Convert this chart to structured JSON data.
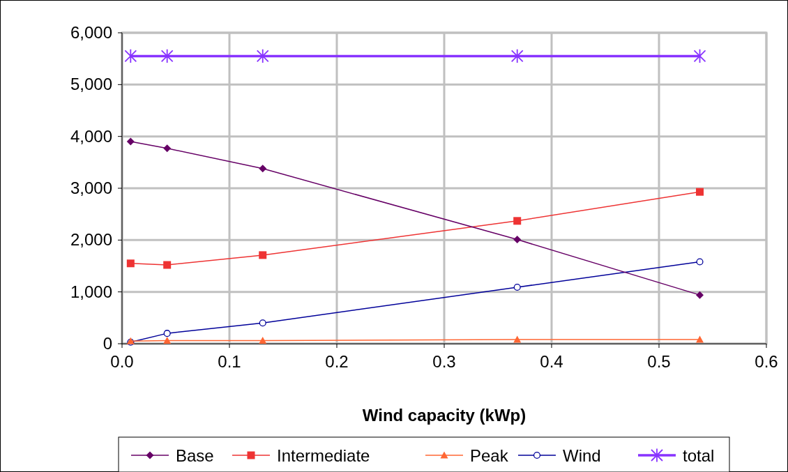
{
  "chart_data": {
    "type": "line",
    "xlabel": "Wind capacity (kWp)",
    "x": [
      0.008,
      0.042,
      0.131,
      0.368,
      0.538
    ],
    "xlim": [
      0,
      0.6
    ],
    "xticks": [
      {
        "value": 0,
        "label": "0.0"
      },
      {
        "value": 0.1,
        "label": "0.1"
      },
      {
        "value": 0.2,
        "label": "0.2"
      },
      {
        "value": 0.3,
        "label": "0.3"
      },
      {
        "value": 0.4,
        "label": "0.4"
      },
      {
        "value": 0.5,
        "label": "0.5"
      },
      {
        "value": 0.6,
        "label": "0.6"
      }
    ],
    "ylim": [
      0,
      6000
    ],
    "yticks": [
      {
        "value": 0,
        "label": "0"
      },
      {
        "value": 1000,
        "label": "1,000"
      },
      {
        "value": 2000,
        "label": "2,000"
      },
      {
        "value": 3000,
        "label": "3,000"
      },
      {
        "value": 4000,
        "label": "4,000"
      },
      {
        "value": 5000,
        "label": "5,000"
      },
      {
        "value": 6000,
        "label": "6,000"
      }
    ],
    "grid": true,
    "legend": "bottom",
    "series": [
      {
        "name": "Base",
        "color": "#660066",
        "marker": "diamond",
        "values": [
          3900,
          3770,
          3380,
          2010,
          940
        ]
      },
      {
        "name": "Intermediate",
        "color": "#ee3333",
        "marker": "square",
        "values": [
          1550,
          1520,
          1710,
          2370,
          2930
        ]
      },
      {
        "name": "Peak",
        "color": "#ff6633",
        "marker": "triangle",
        "values": [
          50,
          60,
          60,
          80,
          80
        ]
      },
      {
        "name": "Wind",
        "color": "#000099",
        "marker": "circle",
        "values": [
          30,
          200,
          400,
          1090,
          1580
        ]
      },
      {
        "name": "total",
        "color": "#8833ff",
        "marker": "cross",
        "values": [
          5550,
          5550,
          5550,
          5550,
          5550
        ]
      }
    ]
  }
}
